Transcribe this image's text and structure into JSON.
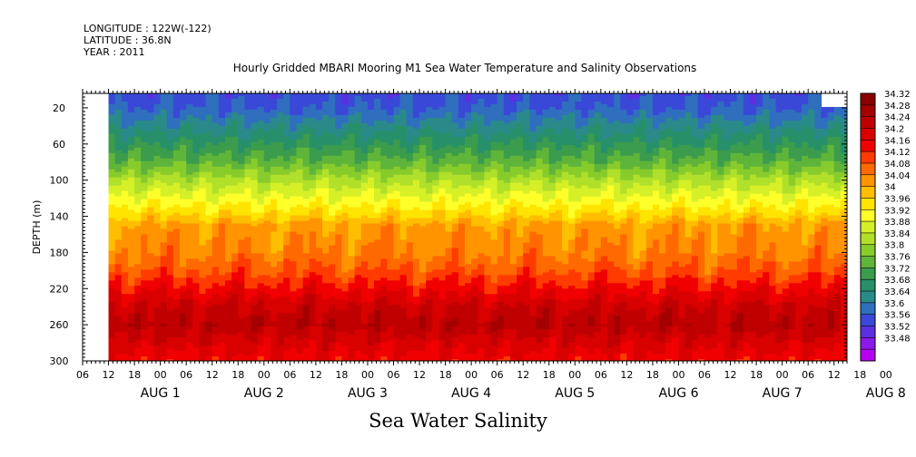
{
  "header": {
    "longitude": "LONGITUDE : 122W(-122)",
    "latitude": "LATITUDE : 36.8N",
    "year": "YEAR : 2011"
  },
  "plot_title": "Hourly Gridded MBARI Mooring M1 Sea Water Temperature and Salinity Observations",
  "main_title": "Sea Water Salinity",
  "chart_data": {
    "type": "heatmap",
    "title": "Hourly Gridded MBARI Mooring M1 Sea Water Temperature and Salinity Observations",
    "subtitle": "Sea Water Salinity",
    "xlabel": "",
    "ylabel": "DEPTH (m)",
    "x_range_hours_from_aug1_00": [
      -18,
      159
    ],
    "data_start_hours_from_aug1_00": -12,
    "y_range": [
      300,
      4
    ],
    "y_ticks": [
      20,
      60,
      100,
      140,
      180,
      220,
      260,
      300
    ],
    "x_tick_labels": [
      "06",
      "12",
      "18",
      "00",
      "06",
      "12",
      "18",
      "00",
      "06",
      "12",
      "18",
      "00",
      "06",
      "12",
      "18",
      "00",
      "06",
      "12",
      "18",
      "00",
      "06",
      "12",
      "18",
      "00",
      "06",
      "12",
      "18",
      "00",
      "06",
      "12",
      "18",
      "00"
    ],
    "x_date_labels": [
      "AUG  1",
      "AUG  2",
      "AUG  3",
      "AUG  4",
      "AUG  5",
      "AUG  6",
      "AUG  7",
      "AUG  8"
    ],
    "colorbar_levels": [
      34.32,
      34.28,
      34.24,
      34.2,
      34.16,
      34.12,
      34.08,
      34.04,
      34,
      33.96,
      33.92,
      33.88,
      33.84,
      33.8,
      33.76,
      33.72,
      33.68,
      33.64,
      33.6,
      33.56,
      33.52,
      33.48
    ],
    "colorbar_colors": [
      "#8b0000",
      "#a40000",
      "#c00000",
      "#d90000",
      "#f00000",
      "#ff3b00",
      "#ff6a00",
      "#ff9400",
      "#ffbe00",
      "#ffe400",
      "#ffff2a",
      "#d6f028",
      "#b0e02a",
      "#88cc2c",
      "#5fb43a",
      "#3a9c4c",
      "#27906a",
      "#2a8a8a",
      "#2f6fbe",
      "#3a48d8",
      "#5a30e0",
      "#8a1ae8",
      "#b800f0"
    ],
    "profile_by_depth": [
      {
        "depth": 4,
        "value": 33.58
      },
      {
        "depth": 20,
        "value": 33.6
      },
      {
        "depth": 40,
        "value": 33.66
      },
      {
        "depth": 60,
        "value": 33.72
      },
      {
        "depth": 80,
        "value": 33.78
      },
      {
        "depth": 100,
        "value": 33.86
      },
      {
        "depth": 120,
        "value": 33.93
      },
      {
        "depth": 140,
        "value": 34.0
      },
      {
        "depth": 150,
        "value": 34.05
      },
      {
        "depth": 180,
        "value": 34.08
      },
      {
        "depth": 200,
        "value": 34.12
      },
      {
        "depth": 220,
        "value": 34.18
      },
      {
        "depth": 240,
        "value": 34.24
      },
      {
        "depth": 260,
        "value": 34.27
      },
      {
        "depth": 280,
        "value": 34.22
      },
      {
        "depth": 300,
        "value": 34.18
      }
    ],
    "missing_regions": [
      {
        "x_from_hours": -18,
        "x_to_hours": -12,
        "depth_from": 4,
        "depth_to": 300
      },
      {
        "x_from_hours": 153,
        "x_to_hours": 159,
        "depth_from": 4,
        "depth_to": 20
      }
    ]
  }
}
